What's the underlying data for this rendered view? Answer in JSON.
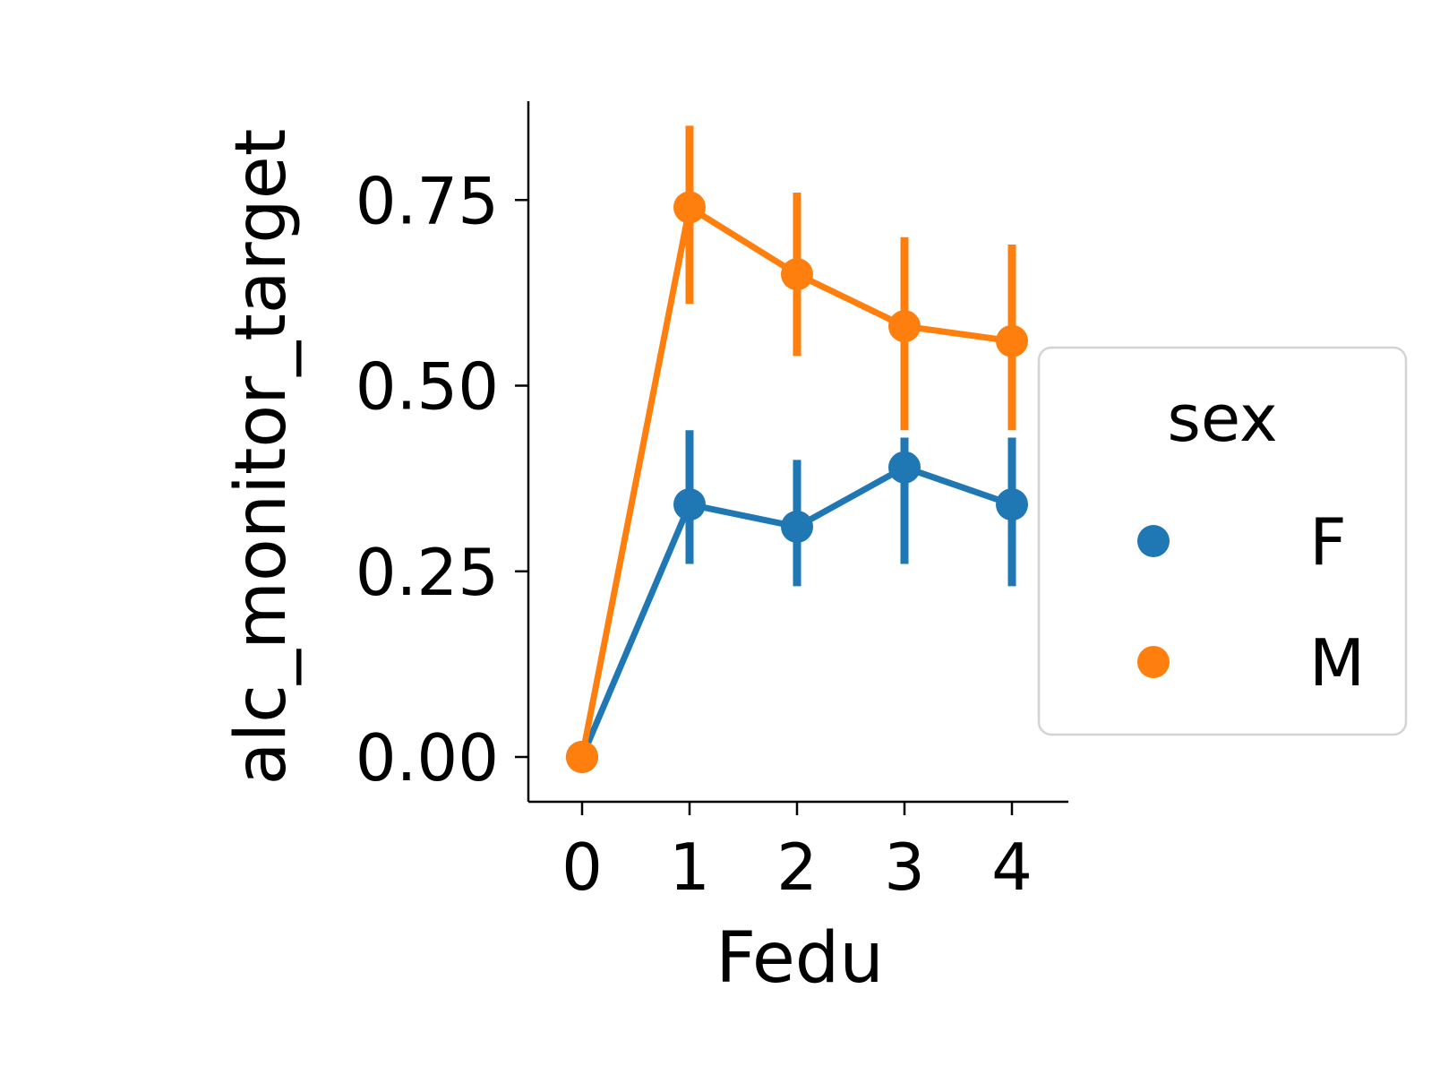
{
  "chart_data": {
    "type": "line",
    "xlabel": "Fedu",
    "ylabel": "alc_monitor_target",
    "categories": [
      "0",
      "1",
      "2",
      "3",
      "4"
    ],
    "x_ticks": [
      "0",
      "1",
      "2",
      "3",
      "4"
    ],
    "y_ticks": [
      "0.00",
      "0.25",
      "0.50",
      "0.75"
    ],
    "y_tick_values": [
      0,
      0.25,
      0.5,
      0.75
    ],
    "ylim": [
      -0.06,
      0.88
    ],
    "legend": {
      "title": "sex",
      "placement": "right-outside"
    },
    "series": [
      {
        "name": "F",
        "color": "#1f77b4",
        "values": [
          0.0,
          0.34,
          0.31,
          0.39,
          0.34
        ],
        "ci_low": [
          0.0,
          0.26,
          0.23,
          0.26,
          0.23
        ],
        "ci_high": [
          0.0,
          0.44,
          0.4,
          0.43,
          0.43
        ]
      },
      {
        "name": "M",
        "color": "#ff7f0e",
        "values": [
          0.0,
          0.74,
          0.65,
          0.58,
          0.56
        ],
        "ci_low": [
          0.0,
          0.61,
          0.54,
          0.44,
          0.44
        ],
        "ci_high": [
          0.0,
          0.85,
          0.76,
          0.7,
          0.69
        ]
      }
    ],
    "grid": false
  }
}
